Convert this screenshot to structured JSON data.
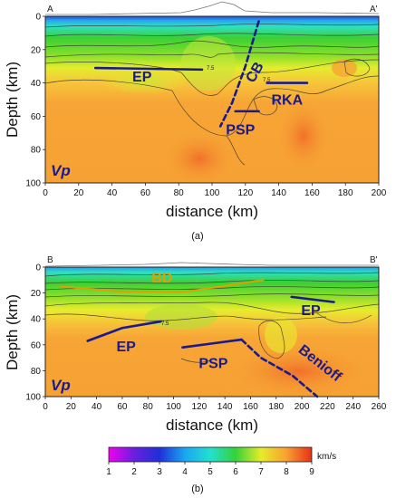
{
  "chart_data": [
    {
      "id": "a",
      "type": "heatmap",
      "title": "",
      "panel_label": "(a)",
      "xlabel": "distance (km)",
      "ylabel": "Depth (km)",
      "xlim": [
        0,
        200
      ],
      "ylim": [
        100,
        0
      ],
      "xticks": [
        0,
        20,
        40,
        60,
        80,
        100,
        120,
        140,
        160,
        180,
        200
      ],
      "yticks": [
        0,
        20,
        40,
        60,
        80,
        100
      ],
      "corner_left": "A",
      "corner_right": "A'",
      "variable_label": "Vp",
      "contour_labels": [
        "7.5",
        "7.5"
      ],
      "lines": [
        {
          "name": "EP",
          "style": "solid",
          "points": [
            [
              30,
              31
            ],
            [
              94,
              32
            ]
          ]
        },
        {
          "name": "CB",
          "style": "dashed",
          "points": [
            [
              128,
              3
            ],
            [
              120,
              30
            ],
            [
              112,
              52
            ],
            [
              105,
              66
            ]
          ]
        },
        {
          "name": "RKA",
          "style": "solid",
          "points": [
            [
              133,
              40
            ],
            [
              157,
              40
            ]
          ]
        },
        {
          "name": "PSP",
          "style": "solid",
          "points": [
            [
              114,
              57
            ],
            [
              128,
              57
            ]
          ]
        }
      ],
      "annotations": [
        {
          "text": "EP",
          "x": 58,
          "y": 39
        },
        {
          "text": "CB",
          "x": 128,
          "y": 35
        },
        {
          "text": "RKA",
          "x": 145,
          "y": 53
        },
        {
          "text": "PSP",
          "x": 117,
          "y": 71
        }
      ]
    },
    {
      "id": "b",
      "type": "heatmap",
      "title": "",
      "panel_label": "(b)",
      "xlabel": "distance (km)",
      "ylabel": "Depth (km)",
      "xlim": [
        0,
        260
      ],
      "ylim": [
        100,
        0
      ],
      "xticks": [
        0,
        20,
        40,
        60,
        80,
        100,
        120,
        140,
        160,
        180,
        200,
        220,
        240,
        260
      ],
      "yticks": [
        0,
        20,
        40,
        60,
        80,
        100
      ],
      "corner_left": "B",
      "corner_right": "B'",
      "variable_label": "Vp",
      "contour_labels": [
        "7.5"
      ],
      "lines": [
        {
          "name": "BD",
          "style": "solid",
          "color": "#e0a000",
          "points": [
            [
              12,
              15
            ],
            [
              60,
              19
            ],
            [
              110,
              19
            ],
            [
              170,
              10
            ]
          ]
        },
        {
          "name": "EP",
          "style": "solid",
          "points": [
            [
              192,
              23
            ],
            [
              225,
              27
            ]
          ]
        },
        {
          "name": "EP",
          "style": "solid",
          "points": [
            [
              33,
              57
            ],
            [
              60,
              47
            ],
            [
              90,
              42
            ]
          ]
        },
        {
          "name": "PSP",
          "style": "solid",
          "points": [
            [
              107,
              62
            ],
            [
              130,
              59
            ],
            [
              153,
              56
            ]
          ]
        },
        {
          "name": "Benioff",
          "style": "dashed",
          "points": [
            [
              153,
              56
            ],
            [
              168,
              70
            ],
            [
              193,
              84
            ],
            [
              212,
              100
            ]
          ]
        }
      ],
      "annotations": [
        {
          "text": "BD",
          "x": 91,
          "y": 12
        },
        {
          "text": "EP",
          "x": 207,
          "y": 37
        },
        {
          "text": "EP",
          "x": 63,
          "y": 65
        },
        {
          "text": "PSP",
          "x": 131,
          "y": 78
        },
        {
          "text": "Benioff",
          "x": 212,
          "y": 77
        }
      ]
    }
  ],
  "colorbar": {
    "min": 1,
    "max": 9,
    "ticks": [
      1,
      2,
      3,
      4,
      5,
      6,
      7,
      8,
      9
    ],
    "unit": "km/s",
    "stops": [
      {
        "v": 1,
        "color": "#f000f0"
      },
      {
        "v": 2,
        "color": "#6a1fe0"
      },
      {
        "v": 3,
        "color": "#1f2fd8"
      },
      {
        "v": 4,
        "color": "#1aa7f0"
      },
      {
        "v": 5,
        "color": "#22e0d0"
      },
      {
        "v": 6,
        "color": "#36d23a"
      },
      {
        "v": 7,
        "color": "#e6ec2a"
      },
      {
        "v": 8,
        "color": "#f8a030"
      },
      {
        "v": 9,
        "color": "#e63018"
      }
    ]
  }
}
